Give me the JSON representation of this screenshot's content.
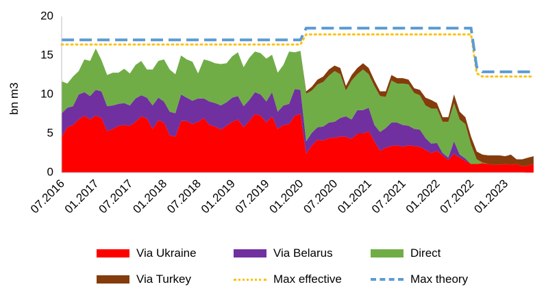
{
  "chart_data": {
    "type": "area",
    "title": "",
    "xlabel": "",
    "ylabel": "bn m3",
    "ylim": [
      0,
      20
    ],
    "yticks": [
      "0",
      "5",
      "10",
      "15",
      "20"
    ],
    "grid": false,
    "legend_position": "bottom",
    "x_tick_labels": [
      "07.2016",
      "01.2017",
      "07.2017",
      "01.2018",
      "07.2018",
      "01.2019",
      "07.2019",
      "01.2020",
      "07.2020",
      "01.2021",
      "07.2021",
      "01.2022",
      "07.2022",
      "01.2023"
    ],
    "x_start": "07.2016",
    "x_end": "06.2023",
    "series": [
      {
        "name": "Via Ukraine",
        "kind": "stacked-area",
        "color": "#ff0000",
        "values": [
          4.6,
          5.8,
          6.1,
          6.8,
          7.3,
          6.8,
          7.3,
          7.0,
          5.3,
          5.6,
          6.0,
          6.1,
          6.0,
          6.5,
          7.2,
          6.9,
          5.6,
          6.7,
          6.4,
          4.8,
          4.6,
          6.6,
          6.6,
          6.2,
          6.5,
          7.0,
          6.1,
          5.9,
          5.5,
          6.0,
          6.5,
          6.8,
          5.8,
          6.6,
          7.5,
          7.3,
          6.4,
          7.2,
          5.6,
          6.1,
          6.2,
          7.3,
          7.5,
          2.4,
          3.5,
          4.2,
          4.1,
          4.4,
          4.5,
          4.6,
          4.6,
          4.3,
          5.0,
          5.0,
          5.3,
          4.0,
          2.8,
          3.2,
          3.4,
          3.5,
          3.3,
          3.5,
          3.4,
          3.3,
          2.9,
          2.5,
          2.8,
          2.2,
          1.6,
          2.4,
          1.9,
          1.5,
          1.1,
          1.1,
          1.2,
          1.1,
          1.0,
          1.0,
          1.1,
          1.0,
          1.1,
          0.8,
          0.9,
          1.1
        ]
      },
      {
        "name": "Via Belarus",
        "kind": "stacked-area",
        "color": "#7030a0",
        "values": [
          3.0,
          2.5,
          2.4,
          3.2,
          3.0,
          3.0,
          3.3,
          3.4,
          3.2,
          3.0,
          2.8,
          2.8,
          2.6,
          3.0,
          2.7,
          2.7,
          3.0,
          2.9,
          2.7,
          3.0,
          3.0,
          3.4,
          3.0,
          3.0,
          3.0,
          2.5,
          3.0,
          3.0,
          3.1,
          3.0,
          3.1,
          3.0,
          2.7,
          2.7,
          2.8,
          2.7,
          2.7,
          3.1,
          2.2,
          2.5,
          2.6,
          3.4,
          3.1,
          1.6,
          1.6,
          1.6,
          1.8,
          2.0,
          2.0,
          2.4,
          2.6,
          2.5,
          3.0,
          3.0,
          3.0,
          2.1,
          2.4,
          2.5,
          3.0,
          2.9,
          2.8,
          2.5,
          2.2,
          2.2,
          1.5,
          1.2,
          1.0,
          0.3,
          0.3,
          1.6,
          0.4,
          0.3,
          0.0,
          0.0,
          0.0,
          0.0,
          0.0,
          0.0,
          0.0,
          0.0,
          0.0,
          0.0,
          0.0,
          0.0
        ]
      },
      {
        "name": "Direct",
        "kind": "stacked-area",
        "color": "#70ad47",
        "values": [
          4.1,
          3.1,
          3.8,
          3.0,
          4.2,
          4.5,
          5.3,
          4.0,
          4.0,
          4.2,
          4.0,
          4.4,
          4.1,
          4.3,
          4.4,
          3.6,
          4.6,
          4.7,
          5.4,
          5.4,
          5.0,
          5.0,
          4.9,
          5.0,
          3.2,
          5.0,
          5.2,
          5.1,
          5.3,
          5.0,
          5.3,
          5.6,
          5.0,
          5.4,
          5.2,
          5.3,
          5.5,
          4.8,
          5.0,
          5.2,
          6.7,
          4.7,
          5.0,
          6.1,
          5.4,
          5.5,
          5.7,
          6.0,
          6.5,
          5.6,
          3.3,
          5.0,
          4.6,
          5.2,
          4.3,
          5.0,
          4.6,
          4.0,
          5.4,
          5.0,
          5.3,
          5.3,
          4.6,
          4.4,
          4.2,
          4.5,
          4.4,
          4.0,
          4.6,
          4.9,
          4.5,
          4.4,
          2.5,
          0.6,
          0.1,
          0.0,
          0.0,
          0.0,
          0.0,
          0.0,
          0.0,
          0.0,
          0.0,
          0.0
        ]
      },
      {
        "name": "Via Turkey",
        "kind": "stacked-area",
        "color": "#843c0c",
        "values": [
          0.0,
          0.0,
          0.0,
          0.0,
          0.0,
          0.0,
          0.0,
          0.0,
          0.0,
          0.0,
          0.0,
          0.0,
          0.0,
          0.0,
          0.0,
          0.0,
          0.0,
          0.0,
          0.0,
          0.0,
          0.0,
          0.0,
          0.0,
          0.0,
          0.0,
          0.0,
          0.0,
          0.0,
          0.0,
          0.0,
          0.0,
          0.0,
          0.0,
          0.0,
          0.0,
          0.0,
          0.0,
          0.0,
          0.0,
          0.0,
          0.0,
          0.0,
          0.0,
          0.3,
          0.5,
          0.6,
          0.7,
          0.8,
          0.7,
          0.8,
          0.6,
          0.7,
          0.8,
          0.8,
          0.8,
          0.7,
          0.6,
          0.7,
          0.7,
          0.7,
          0.7,
          0.6,
          0.6,
          0.7,
          1.0,
          1.1,
          0.7,
          0.6,
          0.6,
          1.1,
          1.0,
          0.9,
          1.0,
          1.0,
          1.0,
          1.1,
          1.2,
          1.2,
          1.0,
          1.3,
          0.6,
          0.9,
          1.0,
          1.0
        ]
      },
      {
        "name": "Max effective",
        "kind": "line",
        "color": "#ffc000",
        "style": "dotted",
        "values": [
          16.4,
          16.4,
          16.4,
          16.4,
          16.4,
          16.4,
          16.4,
          16.4,
          16.4,
          16.4,
          16.4,
          16.4,
          16.4,
          16.4,
          16.4,
          16.4,
          16.4,
          16.4,
          16.4,
          16.4,
          16.4,
          16.4,
          16.4,
          16.4,
          16.4,
          16.4,
          16.4,
          16.4,
          16.4,
          16.4,
          16.4,
          16.4,
          16.4,
          16.4,
          16.4,
          16.4,
          16.4,
          16.4,
          16.4,
          16.4,
          16.4,
          16.4,
          16.4,
          17.7,
          17.7,
          17.7,
          17.7,
          17.7,
          17.7,
          17.7,
          17.7,
          17.7,
          17.7,
          17.7,
          17.7,
          17.7,
          17.7,
          17.7,
          17.7,
          17.7,
          17.7,
          17.7,
          17.7,
          17.7,
          17.7,
          17.7,
          17.7,
          17.7,
          17.7,
          17.7,
          17.7,
          17.7,
          17.7,
          12.7,
          12.3,
          12.3,
          12.3,
          12.3,
          12.3,
          12.3,
          12.3,
          12.3,
          12.3,
          12.3
        ]
      },
      {
        "name": "Max theory",
        "kind": "line",
        "color": "#5b9bd5",
        "style": "dashed",
        "values": [
          17.0,
          17.0,
          17.0,
          17.0,
          17.0,
          17.0,
          17.0,
          17.0,
          17.0,
          17.0,
          17.0,
          17.0,
          17.0,
          17.0,
          17.0,
          17.0,
          17.0,
          17.0,
          17.0,
          17.0,
          17.0,
          17.0,
          17.0,
          17.0,
          17.0,
          17.0,
          17.0,
          17.0,
          17.0,
          17.0,
          17.0,
          17.0,
          17.0,
          17.0,
          17.0,
          17.0,
          17.0,
          17.0,
          17.0,
          17.0,
          17.0,
          17.0,
          17.0,
          18.5,
          18.5,
          18.5,
          18.5,
          18.5,
          18.5,
          18.5,
          18.5,
          18.5,
          18.5,
          18.5,
          18.5,
          18.5,
          18.5,
          18.5,
          18.5,
          18.5,
          18.5,
          18.5,
          18.5,
          18.5,
          18.5,
          18.5,
          18.5,
          18.5,
          18.5,
          18.5,
          18.5,
          18.5,
          18.5,
          13.5,
          12.9,
          12.9,
          12.9,
          12.9,
          12.9,
          12.9,
          12.9,
          12.9,
          12.9,
          12.9
        ]
      }
    ]
  }
}
